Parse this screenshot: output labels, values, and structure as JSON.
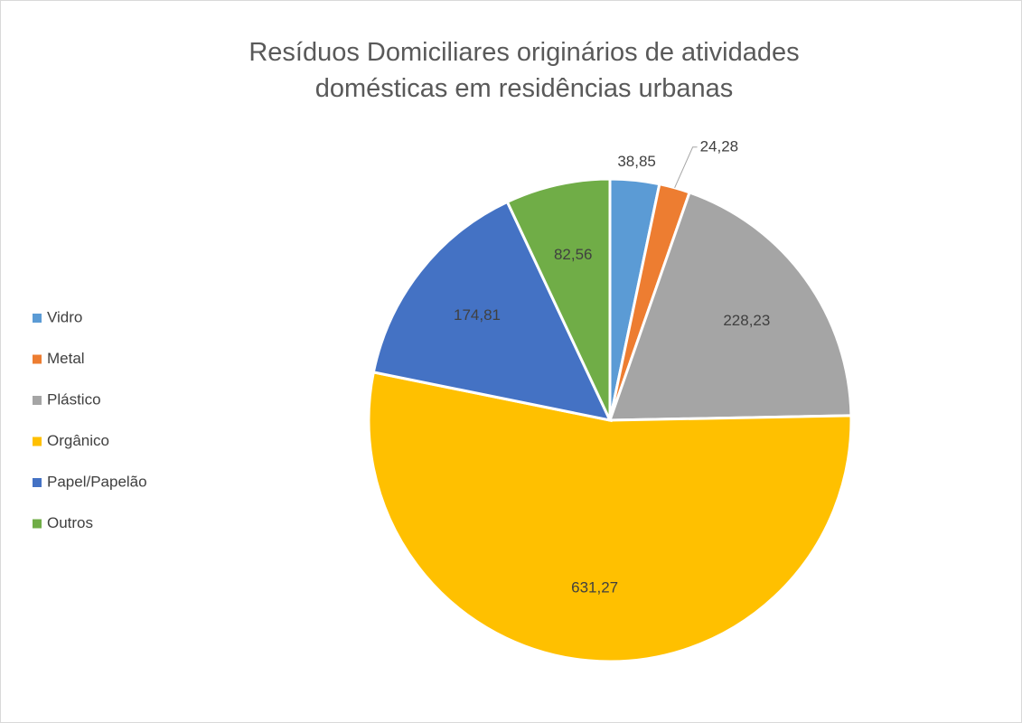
{
  "chart_data": {
    "type": "pie",
    "title": "Resíduos Domiciliares originários de atividades domésticas em residências urbanas",
    "categories": [
      "Vidro",
      "Metal",
      "Plástico",
      "Orgânico",
      "Papel/Papelão",
      "Outros"
    ],
    "values": [
      38.85,
      24.28,
      228.23,
      631.27,
      174.81,
      82.56
    ],
    "value_labels": [
      "38,85",
      "24,28",
      "228,23",
      "631,27",
      "174,81",
      "82,56"
    ],
    "colors": [
      "#5b9bd5",
      "#ed7d31",
      "#a5a5a5",
      "#ffc000",
      "#4472c4",
      "#70ad47"
    ],
    "legend": "left"
  }
}
